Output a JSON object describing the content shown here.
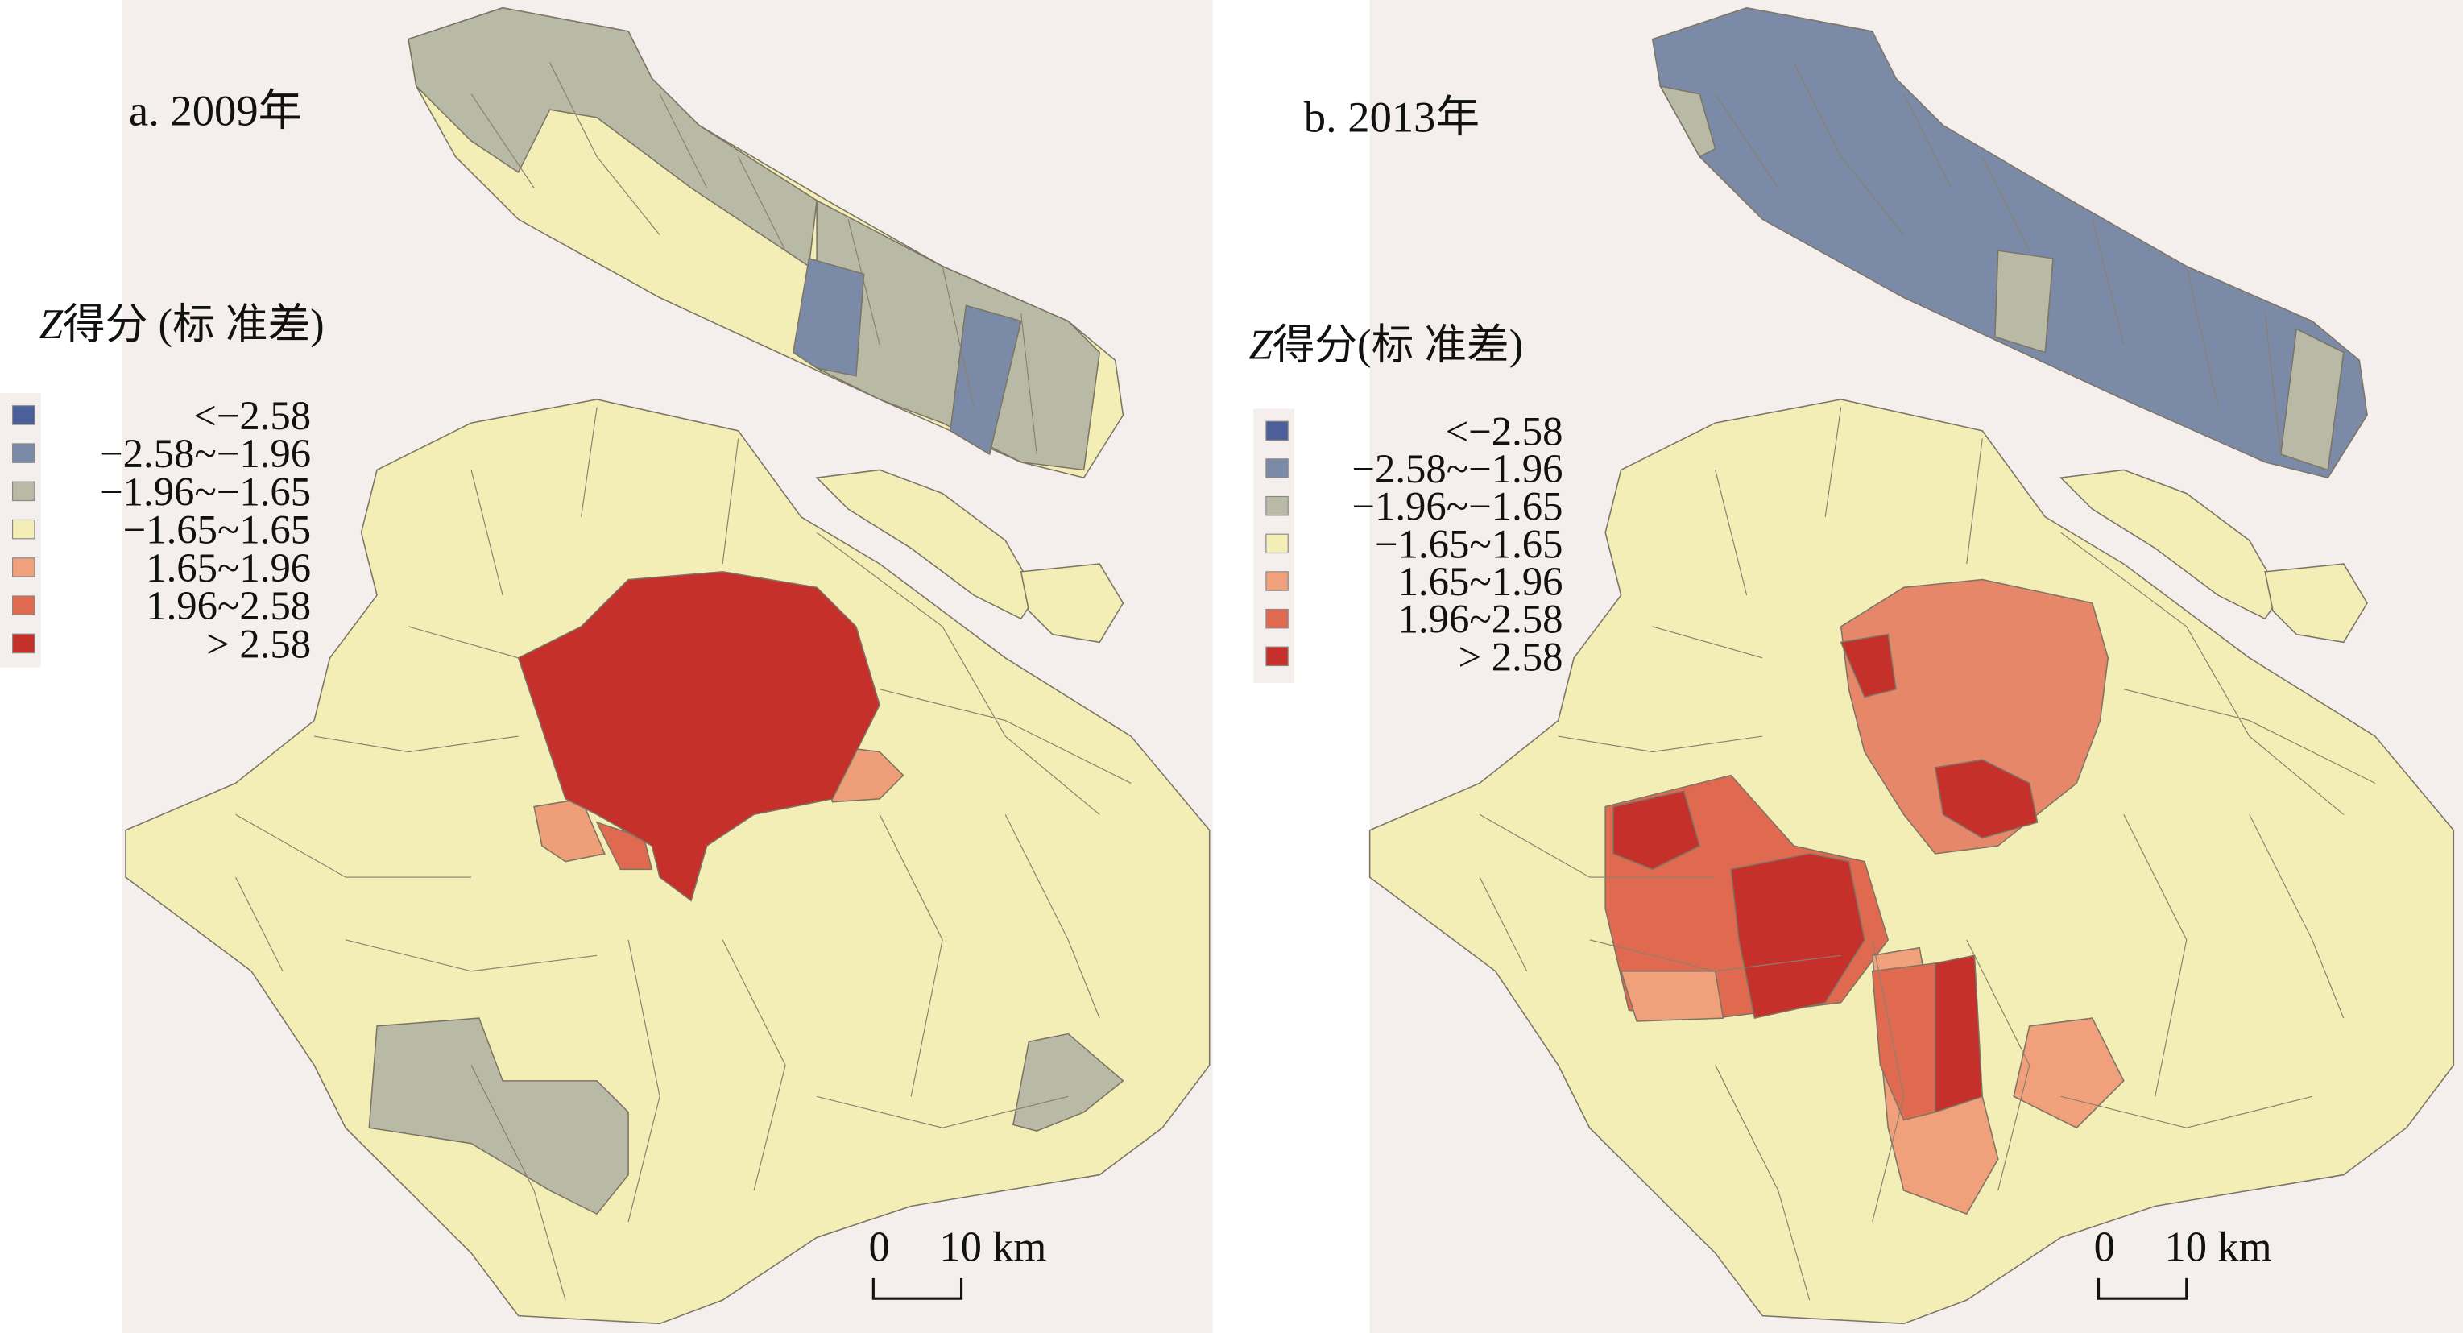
{
  "panels": [
    {
      "title": "a. 2009年",
      "legend": {
        "title_var": "Z",
        "title": "得分 (标 准差)",
        "items": [
          "<−2.58",
          "−2.58~−1.96",
          "−1.96~−1.65",
          "−1.65~1.65",
          "1.65~1.96",
          "1.96~2.58",
          "> 2.58"
        ]
      },
      "scale": {
        "start": "0",
        "end": "10 km"
      }
    },
    {
      "title": "b. 2013年",
      "legend": {
        "title_var": "Z",
        "title": "得分(标 准差)",
        "items": [
          "<−2.58",
          "−2.58~−1.96",
          "−1.96~−1.65",
          "−1.65~1.65",
          "1.65~1.96",
          "1.96~2.58",
          "> 2.58"
        ]
      },
      "scale": {
        "start": "0",
        "end": "10 km"
      }
    }
  ]
}
